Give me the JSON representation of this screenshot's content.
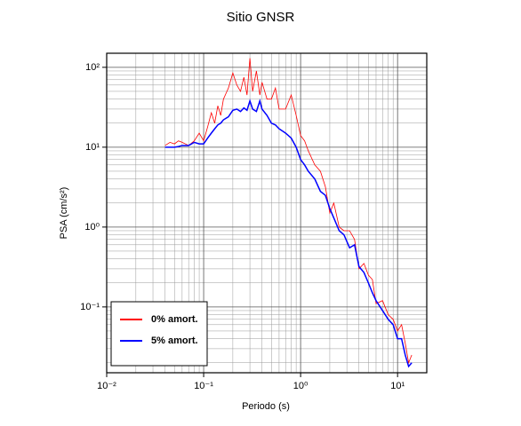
{
  "chart_data": {
    "type": "line",
    "title": "Sitio GNSR",
    "xlabel": "Periodo (s)",
    "ylabel": "PSA (cm/s²)",
    "xscale": "log",
    "yscale": "log",
    "grid": true,
    "legend": "lower left",
    "xlim": [
      0.01,
      20
    ],
    "ylim": [
      0.015,
      150
    ],
    "xticks": [
      {
        "value": 0.01,
        "label": "10⁻²"
      },
      {
        "value": 0.1,
        "label": "10⁻¹"
      },
      {
        "value": 1,
        "label": "10⁰"
      },
      {
        "value": 10,
        "label": "10¹"
      }
    ],
    "yticks": [
      {
        "value": 0.1,
        "label": "10⁻¹"
      },
      {
        "value": 1,
        "label": "10⁰"
      },
      {
        "value": 10,
        "label": "10¹"
      },
      {
        "value": 100,
        "label": "10²"
      }
    ],
    "x": [
      0.04,
      0.045,
      0.05,
      0.055,
      0.06,
      0.07,
      0.08,
      0.09,
      0.1,
      0.11,
      0.12,
      0.13,
      0.14,
      0.15,
      0.16,
      0.18,
      0.2,
      0.22,
      0.24,
      0.26,
      0.28,
      0.3,
      0.32,
      0.35,
      0.38,
      0.4,
      0.45,
      0.5,
      0.55,
      0.6,
      0.7,
      0.8,
      0.9,
      1.0,
      1.1,
      1.2,
      1.4,
      1.6,
      1.8,
      2.0,
      2.2,
      2.5,
      2.8,
      3.2,
      3.6,
      4.0,
      4.5,
      5,
      5.5,
      6,
      7,
      8,
      9,
      10,
      11,
      12,
      13,
      14
    ],
    "series": [
      {
        "name": "0% amort.",
        "color": "#ff0000",
        "width": 0.8,
        "values": [
          10.5,
          11.5,
          11,
          12,
          11.5,
          10.5,
          12,
          15,
          12,
          18,
          27,
          20,
          33,
          25,
          40,
          55,
          85,
          60,
          50,
          75,
          45,
          130,
          50,
          90,
          45,
          65,
          40,
          40,
          55,
          30,
          30,
          45,
          25,
          14,
          12,
          9,
          6,
          5,
          3.2,
          1.5,
          2,
          1,
          0.9,
          0.9,
          0.7,
          0.3,
          0.35,
          0.25,
          0.22,
          0.11,
          0.12,
          0.08,
          0.07,
          0.05,
          0.06,
          0.035,
          0.02,
          0.025
        ]
      },
      {
        "name": "5% amort.",
        "color": "#0000ff",
        "width": 1.5,
        "values": [
          10,
          10,
          10,
          10.2,
          10.5,
          10.5,
          11.5,
          11,
          11,
          13,
          15,
          17,
          19,
          20,
          22,
          24,
          29,
          30,
          28,
          31,
          29,
          38,
          30,
          28,
          38,
          30,
          25,
          20,
          19,
          17,
          15,
          13,
          10,
          7,
          6,
          5,
          4,
          2.8,
          2.5,
          1.7,
          1.3,
          0.9,
          0.8,
          0.55,
          0.6,
          0.32,
          0.27,
          0.2,
          0.15,
          0.12,
          0.09,
          0.07,
          0.06,
          0.04,
          0.04,
          0.025,
          0.018,
          0.02
        ]
      }
    ]
  }
}
